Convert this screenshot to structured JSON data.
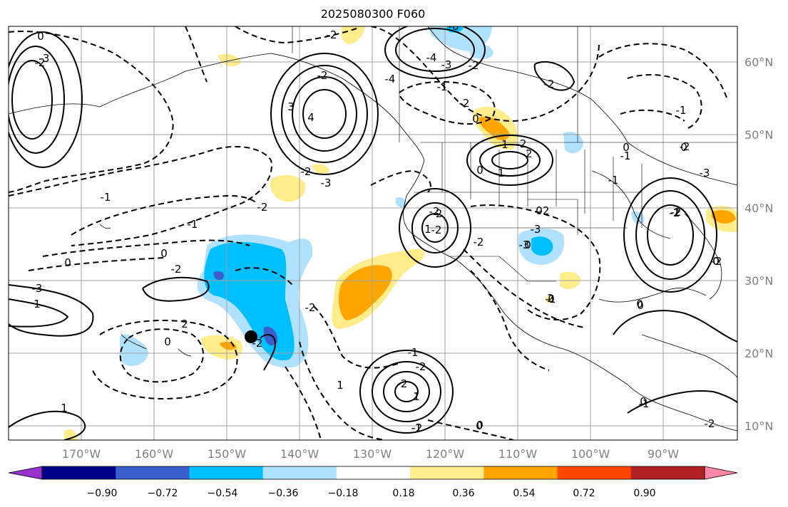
{
  "title": "2025080300 F060",
  "map": {
    "lat_labels": [
      "60°N",
      "50°N",
      "40°N",
      "30°N",
      "20°N",
      "10°N"
    ],
    "lon_labels": [
      "170°W",
      "160°W",
      "150°W",
      "140°W",
      "130°W",
      "120°W",
      "110°W",
      "100°W",
      "90°W"
    ],
    "contour_labels": [
      "0",
      "-2",
      "-6",
      "-4",
      "-3",
      "-2",
      "-1",
      "-2",
      "-2",
      "0",
      "-2",
      "-2",
      "-2",
      "3",
      "4",
      "-4",
      "-2",
      "-3",
      "-1",
      "-2",
      "-1",
      "-2",
      "-3",
      "0",
      "0",
      "-2",
      "-3",
      "1",
      "2",
      "0",
      "-2",
      "-2",
      "1",
      "-1",
      "-2",
      "-2",
      "1",
      "-1",
      "0",
      "-2",
      "-3",
      "-2",
      "0",
      "-2",
      "-2",
      "0",
      "-1",
      "-2",
      "0",
      "-1",
      "1",
      "0",
      "-2",
      "-2",
      "-1",
      "0",
      "0",
      "-2",
      "-1",
      "-2",
      "-3",
      "0",
      "-1",
      "1",
      "0",
      "1",
      "-1",
      "0",
      "0",
      "-1",
      "-3",
      "0",
      "-2",
      "2",
      "-2",
      "0",
      "-1"
    ]
  },
  "colorbar": {
    "tick_labels": [
      "−0.90",
      "−0.72",
      "−0.54",
      "−0.36",
      "−0.18",
      "0.18",
      "0.36",
      "0.54",
      "0.72",
      "0.90"
    ],
    "colors": [
      "#9932cc",
      "#00008b",
      "#3a5fcd",
      "#00bfff",
      "#b0e2ff",
      "#ffffff",
      "#ffec8b",
      "#ffa500",
      "#ff4500",
      "#b22222",
      "#ff88aa"
    ]
  },
  "marker": {
    "color": "#000000"
  }
}
